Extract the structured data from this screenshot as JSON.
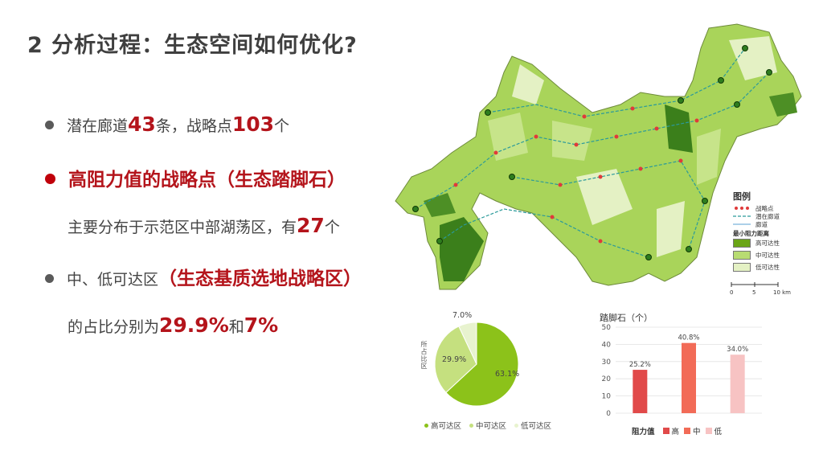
{
  "slide_title": "2 分析过程：生态空间如何优化?",
  "bullets": {
    "b1": {
      "pre": "潜在廊道",
      "num1": "43",
      "mid": "条，战略点",
      "num2": "103",
      "post": "个"
    },
    "b2": {
      "text": "高阻力值的战略点（生态踏脚石）"
    },
    "b2_sub": {
      "pre": "主要分布于示范区中部湖荡区，有",
      "num": "27",
      "post": "个"
    },
    "b3": {
      "pre": "中、低可达区",
      "highlight": "（生态基质选地战略区）"
    },
    "b3_sub": {
      "pre": "的占比分别为",
      "v1": "29.9%",
      "mid": "和",
      "v2": "7%"
    }
  },
  "map_legend": {
    "title": "图例",
    "items": [
      "战略点",
      "潜在廊道",
      "廊道"
    ],
    "distance_title": "最小阻力距离",
    "classes": [
      {
        "label": "高可达性",
        "color": "#6aa516"
      },
      {
        "label": "中可达性",
        "color": "#b8dc72"
      },
      {
        "label": "低可达性",
        "color": "#e4f1c4"
      }
    ],
    "scale_labels": [
      "0",
      "5",
      "10 km"
    ]
  },
  "chart_data": [
    {
      "type": "pie",
      "ylabel": "所占比区",
      "categories": [
        "高可达区",
        "中可达区",
        "低可达区"
      ],
      "values": [
        63.1,
        29.9,
        7.0
      ],
      "labels": [
        "63.1%",
        "29.9%",
        "7.0%"
      ],
      "colors": [
        "#8cc21a",
        "#c5e07f",
        "#e8f3cf"
      ]
    },
    {
      "type": "bar",
      "title": "踏脚石（个）",
      "xlabel": "阻力值",
      "categories": [
        "高",
        "中",
        "低"
      ],
      "values": [
        25.2,
        40.8,
        34.0
      ],
      "labels": [
        "25.2%",
        "40.8%",
        "34.0%"
      ],
      "ylim": [
        0,
        50
      ],
      "yticks": [
        "0",
        "10",
        "20",
        "30",
        "40",
        "50"
      ],
      "colors": [
        "#e14a4a",
        "#f26b57",
        "#f7c3c3"
      ],
      "grid": true
    }
  ]
}
